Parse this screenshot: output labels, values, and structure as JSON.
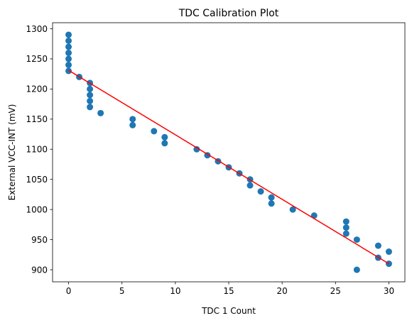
{
  "chart_data": {
    "type": "scatter",
    "title": "TDC Calibration Plot",
    "xlabel": "TDC 1 Count",
    "ylabel": "External VCC-INT (mV)",
    "xlim": [
      -1.5,
      31.5
    ],
    "ylim": [
      880,
      1310
    ],
    "xticks": [
      0,
      5,
      10,
      15,
      20,
      25,
      30
    ],
    "yticks": [
      900,
      950,
      1000,
      1050,
      1100,
      1150,
      1200,
      1250,
      1300
    ],
    "grid": false,
    "series": [
      {
        "kind": "scatter",
        "color": "#1f77b4",
        "points": [
          [
            0,
            1290
          ],
          [
            0,
            1280
          ],
          [
            0,
            1270
          ],
          [
            0,
            1260
          ],
          [
            0,
            1250
          ],
          [
            0,
            1240
          ],
          [
            0,
            1230
          ],
          [
            1,
            1220
          ],
          [
            2,
            1210
          ],
          [
            2,
            1200
          ],
          [
            2,
            1190
          ],
          [
            2,
            1180
          ],
          [
            2,
            1170
          ],
          [
            3,
            1160
          ],
          [
            6,
            1150
          ],
          [
            6,
            1140
          ],
          [
            8,
            1130
          ],
          [
            9,
            1120
          ],
          [
            9,
            1110
          ],
          [
            12,
            1100
          ],
          [
            13,
            1090
          ],
          [
            14,
            1080
          ],
          [
            15,
            1070
          ],
          [
            16,
            1060
          ],
          [
            17,
            1050
          ],
          [
            17,
            1040
          ],
          [
            18,
            1030
          ],
          [
            19,
            1020
          ],
          [
            19,
            1010
          ],
          [
            21,
            1000
          ],
          [
            23,
            990
          ],
          [
            26,
            980
          ],
          [
            26,
            970
          ],
          [
            26,
            960
          ],
          [
            27,
            950
          ],
          [
            27,
            900
          ],
          [
            29,
            940
          ],
          [
            29,
            920
          ],
          [
            30,
            930
          ],
          [
            30,
            910
          ]
        ]
      },
      {
        "kind": "line",
        "color": "#ff0000",
        "points": [
          [
            0,
            1231
          ],
          [
            30,
            910
          ]
        ]
      }
    ]
  }
}
